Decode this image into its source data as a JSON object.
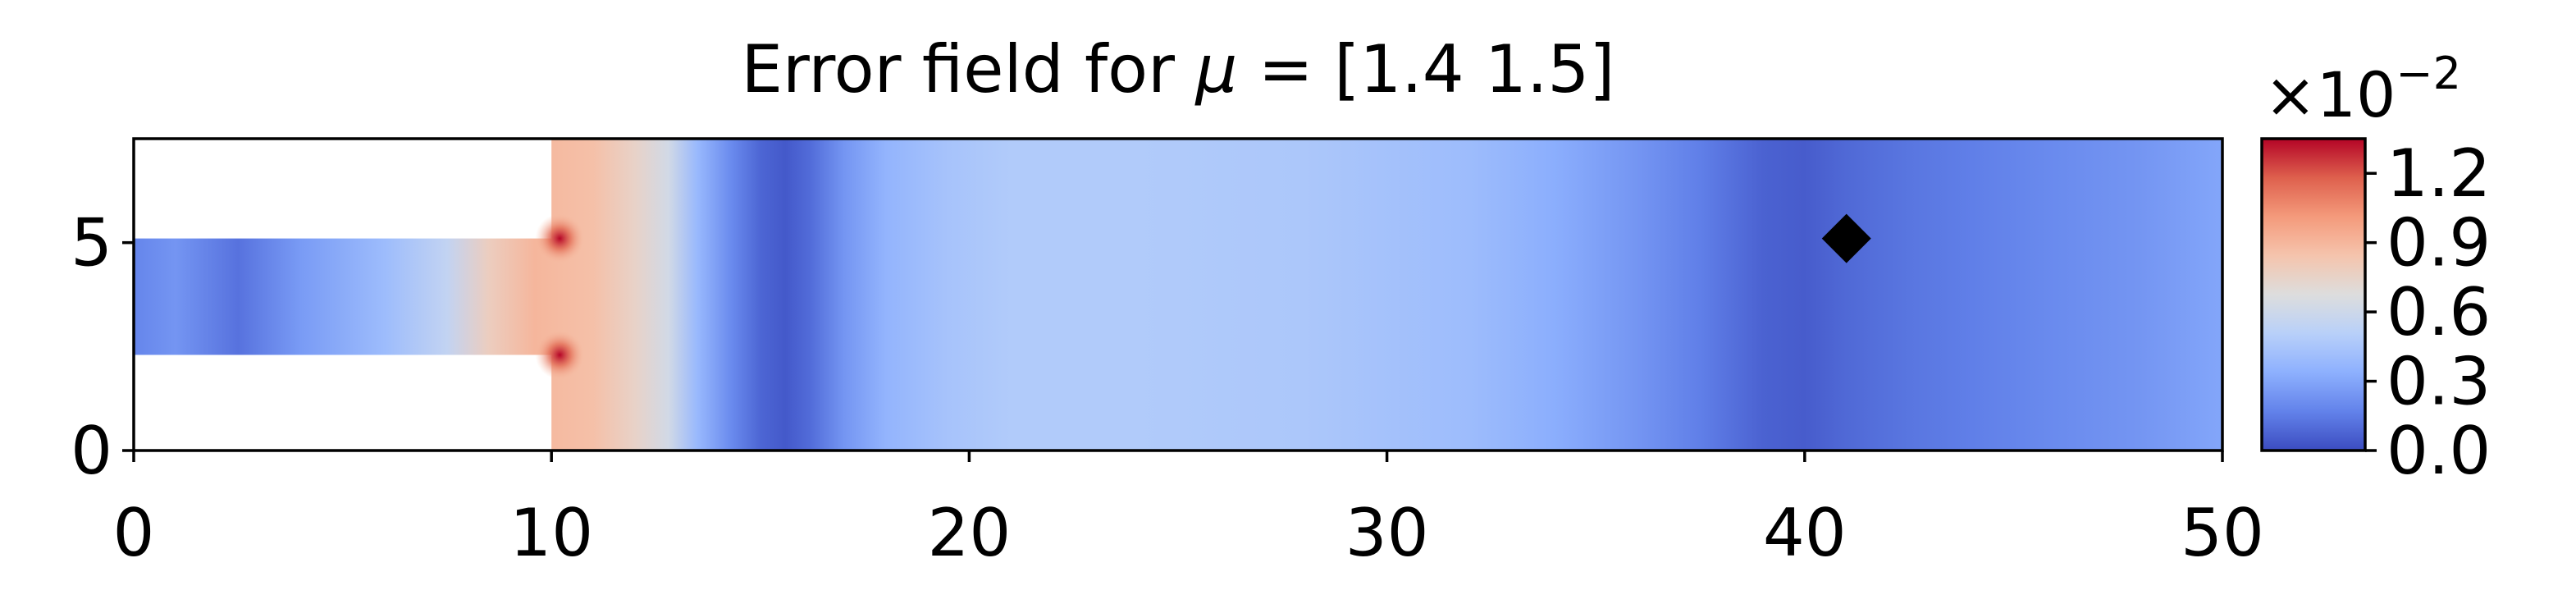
{
  "chart_data": {
    "type": "heatmap",
    "title": "Error field for μ = [1.4 1.5]",
    "title_parts": {
      "prefix": "Error field for ",
      "symbol": "μ",
      "suffix": " = [1.4 1.5]"
    },
    "xlabel": "",
    "ylabel": "",
    "xlim": [
      0,
      50
    ],
    "ylim": [
      0,
      7.5
    ],
    "x_ticks": [
      0,
      10,
      20,
      30,
      40,
      50
    ],
    "x_tick_labels": [
      "0",
      "10",
      "20",
      "30",
      "40",
      "50"
    ],
    "y_ticks": [
      0,
      5
    ],
    "y_tick_labels": [
      "0",
      "5"
    ],
    "grid": false,
    "colormap": "coolwarm",
    "colorbar": {
      "range": [
        0.0,
        1.35
      ],
      "ticks": [
        0.0,
        0.3,
        0.6,
        0.9,
        1.2
      ],
      "tick_labels": [
        "0.0",
        "0.3",
        "0.6",
        "0.9",
        "1.2"
      ],
      "multiplier_base": "×10",
      "multiplier_exponent": "−2"
    },
    "domain": {
      "inlet_channel": {
        "x": [
          0,
          10
        ],
        "y": [
          2.3,
          5.1
        ]
      },
      "main_channel": {
        "x": [
          10,
          50
        ],
        "y": [
          0,
          7.5
        ]
      }
    },
    "error_profile_along_x": {
      "x": [
        0,
        1,
        2.5,
        4,
        6,
        7.5,
        8.5,
        9.6,
        10.2,
        11,
        12,
        12.8,
        13.5,
        14.3,
        15,
        15.6,
        16.2,
        17,
        18,
        19.5,
        21,
        24,
        28,
        32,
        34,
        36,
        37.5,
        39,
        40,
        41,
        42.5,
        44,
        46,
        48,
        50
      ],
      "values": [
        0.18,
        0.24,
        0.12,
        0.26,
        0.4,
        0.55,
        0.78,
        0.9,
        0.88,
        0.86,
        0.75,
        0.62,
        0.38,
        0.2,
        0.08,
        0.04,
        0.1,
        0.24,
        0.36,
        0.44,
        0.48,
        0.48,
        0.46,
        0.4,
        0.33,
        0.24,
        0.16,
        0.07,
        0.05,
        0.09,
        0.13,
        0.16,
        0.2,
        0.24,
        0.3
      ]
    },
    "hotspots": [
      {
        "x": 10.2,
        "y": 5.1,
        "value": 1.35
      },
      {
        "x": 10.2,
        "y": 2.3,
        "value": 1.35
      }
    ],
    "marker": {
      "shape": "diamond",
      "x": 41,
      "y": 5.1,
      "color": "#000000"
    }
  }
}
